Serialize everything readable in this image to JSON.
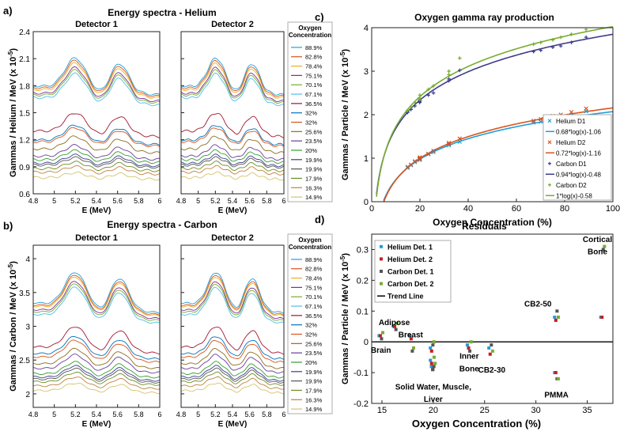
{
  "figure": {
    "panel_a_letter": "a)",
    "panel_b_letter": "b)",
    "panel_c_letter": "c)",
    "panel_d_letter": "d)"
  },
  "chart_data": [
    {
      "id": "a",
      "type": "line",
      "title": "Energy spectra - Helium",
      "subplot_titles": [
        "Detector 1",
        "Detector 2"
      ],
      "xlabel": "E (MeV)",
      "ylabel": "Gammas / Helium / MeV (x 10",
      "ylabel_exp": "-5",
      "ylabel_close": ")",
      "xlim": [
        4.8,
        6.0
      ],
      "ylim": [
        0.6,
        2.4
      ],
      "xticks": [
        4.8,
        5,
        5.2,
        5.4,
        5.6,
        5.8,
        6
      ],
      "xtick_labels": [
        "4.8",
        "5",
        "5.2",
        "5.4",
        "5.6",
        "5.8",
        "6"
      ],
      "yticks": [
        0.6,
        0.9,
        1.2,
        1.5,
        1.8,
        2.1,
        2.4
      ],
      "ytick_labels": [
        "0.6",
        "0.9",
        "1.2",
        "1.5",
        "1.8",
        "2.1",
        "2.4"
      ],
      "legend_title": [
        "Oxygen",
        "Concentration"
      ],
      "legend_placement": "right",
      "series": [
        {
          "name": "88.9%",
          "color": "#1f9fd8",
          "baseline": 1.8,
          "peak": 0.34
        },
        {
          "name": "82.8%",
          "color": "#d9531e",
          "baseline": 1.78,
          "peak": 0.33
        },
        {
          "name": "78.4%",
          "color": "#edb120",
          "baseline": 1.76,
          "peak": 0.32
        },
        {
          "name": "75.1%",
          "color": "#7e2f8e",
          "baseline": 1.72,
          "peak": 0.31
        },
        {
          "name": "70.1%",
          "color": "#77ac30",
          "baseline": 1.7,
          "peak": 0.3
        },
        {
          "name": "67.1%",
          "color": "#4dbeee",
          "baseline": 1.67,
          "peak": 0.29
        },
        {
          "name": "36.5%",
          "color": "#a2142f",
          "baseline": 1.3,
          "peak": 0.22
        },
        {
          "name": "32%",
          "color": "#0072bd",
          "baseline": 1.2,
          "peak": 0.18
        },
        {
          "name": "32%",
          "color": "#d95319",
          "baseline": 1.18,
          "peak": 0.17
        },
        {
          "name": "25.6%",
          "color": "#8c6d1f",
          "baseline": 1.1,
          "peak": 0.15
        },
        {
          "name": "23.5%",
          "color": "#6a3d9a",
          "baseline": 1.02,
          "peak": 0.13
        },
        {
          "name": "20%",
          "color": "#33a02c",
          "baseline": 0.98,
          "peak": 0.11
        },
        {
          "name": "19.9%",
          "color": "#3c3c8c",
          "baseline": 0.94,
          "peak": 0.1
        },
        {
          "name": "19.9%",
          "color": "#555555",
          "baseline": 0.92,
          "peak": 0.09
        },
        {
          "name": "17.9%",
          "color": "#6b8e23",
          "baseline": 0.88,
          "peak": 0.08
        },
        {
          "name": "16.3%",
          "color": "#c08040",
          "baseline": 0.84,
          "peak": 0.07
        },
        {
          "name": "14.9%",
          "color": "#d4c36a",
          "baseline": 0.78,
          "peak": 0.06
        }
      ]
    },
    {
      "id": "b",
      "type": "line",
      "title": "Energy spectra - Carbon",
      "subplot_titles": [
        "Detector 1",
        "Detector 2"
      ],
      "xlabel": "E (MeV)",
      "ylabel": "Gammas / Carbon / MeV (x 10",
      "ylabel_exp": "-5",
      "ylabel_close": ")",
      "xlim": [
        4.8,
        6.0
      ],
      "ylim": [
        1.8,
        4.2
      ],
      "xticks": [
        4.8,
        5,
        5.2,
        5.4,
        5.6,
        5.8,
        6
      ],
      "xtick_labels": [
        "4.8",
        "5",
        "5.2",
        "5.4",
        "5.6",
        "5.8",
        "6"
      ],
      "yticks": [
        2,
        2.5,
        3,
        3.5,
        4
      ],
      "ytick_labels": [
        "2",
        "2.5",
        "3",
        "3.5",
        "4"
      ],
      "legend_title": [
        "Oxygen",
        "Concentration"
      ],
      "legend_placement": "right",
      "series": [
        {
          "name": "88.9%",
          "color": "#1f9fd8",
          "baseline": 3.35,
          "peak": 0.5
        },
        {
          "name": "82.8%",
          "color": "#d9531e",
          "baseline": 3.32,
          "peak": 0.49
        },
        {
          "name": "78.4%",
          "color": "#edb120",
          "baseline": 3.3,
          "peak": 0.48
        },
        {
          "name": "75.1%",
          "color": "#7e2f8e",
          "baseline": 3.25,
          "peak": 0.46
        },
        {
          "name": "70.1%",
          "color": "#77ac30",
          "baseline": 3.22,
          "peak": 0.45
        },
        {
          "name": "67.1%",
          "color": "#4dbeee",
          "baseline": 3.18,
          "peak": 0.44
        },
        {
          "name": "36.5%",
          "color": "#a2142f",
          "baseline": 2.7,
          "peak": 0.33
        },
        {
          "name": "32%",
          "color": "#0072bd",
          "baseline": 2.6,
          "peak": 0.28
        },
        {
          "name": "32%",
          "color": "#d95319",
          "baseline": 2.55,
          "peak": 0.27
        },
        {
          "name": "25.6%",
          "color": "#8c6d1f",
          "baseline": 2.45,
          "peak": 0.24
        },
        {
          "name": "23.5%",
          "color": "#6a3d9a",
          "baseline": 2.38,
          "peak": 0.22
        },
        {
          "name": "20%",
          "color": "#33a02c",
          "baseline": 2.3,
          "peak": 0.19
        },
        {
          "name": "19.9%",
          "color": "#3c3c8c",
          "baseline": 2.25,
          "peak": 0.18
        },
        {
          "name": "19.9%",
          "color": "#555555",
          "baseline": 2.22,
          "peak": 0.17
        },
        {
          "name": "17.9%",
          "color": "#6b8e23",
          "baseline": 2.18,
          "peak": 0.15
        },
        {
          "name": "16.3%",
          "color": "#c08040",
          "baseline": 2.12,
          "peak": 0.14
        },
        {
          "name": "14.9%",
          "color": "#d4c36a",
          "baseline": 2.05,
          "peak": 0.12
        }
      ]
    },
    {
      "id": "c",
      "type": "scatter",
      "title": "Oxygen gamma ray production",
      "xlabel": "Oxygen Concentration (%)",
      "ylabel": "Gammas / Particle / MeV (x 10",
      "ylabel_exp": "-5",
      "ylabel_close": ")",
      "xlim": [
        0,
        100
      ],
      "ylim": [
        0,
        4
      ],
      "xticks": [
        0,
        20,
        40,
        60,
        80,
        100
      ],
      "xtick_labels": [
        "0",
        "20",
        "40",
        "60",
        "80",
        "100"
      ],
      "yticks": [
        0,
        1,
        2,
        3,
        4
      ],
      "ytick_labels": [
        "0",
        "1",
        "2",
        "3",
        "4"
      ],
      "legend_placement": "bottom-right",
      "x": [
        14.9,
        16.3,
        17.9,
        19.9,
        19.9,
        20.0,
        23.5,
        25.6,
        32.0,
        32.0,
        36.5,
        67.1,
        70.1,
        75.1,
        78.4,
        82.8,
        88.9
      ],
      "series": [
        {
          "name": "Helium D1",
          "color": "#1f9fd8",
          "marker": "x",
          "fit": {
            "a": 0.68,
            "b": -1.06
          },
          "values": [
            0.78,
            0.84,
            0.91,
            0.97,
            0.96,
            0.99,
            1.09,
            1.14,
            1.3,
            1.31,
            1.38,
            1.82,
            1.84,
            1.92,
            1.92,
            1.98,
            2.08
          ]
        },
        {
          "name": "Helium D2",
          "color": "#d9531e",
          "marker": "x",
          "fit": {
            "a": 0.72,
            "b": -1.16
          },
          "values": [
            0.8,
            0.85,
            0.93,
            1.0,
            0.98,
            1.02,
            1.1,
            1.17,
            1.33,
            1.35,
            1.45,
            1.86,
            1.9,
            1.97,
            2.0,
            2.06,
            2.14
          ]
        },
        {
          "name": "Carbon D1",
          "color": "#3c3c8c",
          "marker": "+",
          "fit": {
            "a": 0.94,
            "b": -0.48
          },
          "values": [
            2.05,
            2.12,
            2.2,
            2.3,
            2.28,
            2.33,
            2.45,
            2.5,
            2.78,
            2.82,
            3.02,
            3.45,
            3.48,
            3.55,
            3.58,
            3.66,
            3.78
          ]
        },
        {
          "name": "Carbon D2",
          "color": "#77ac30",
          "marker": "+",
          "fit": {
            "a": 1.0,
            "b": -0.58
          },
          "values": [
            2.1,
            2.18,
            2.28,
            2.35,
            2.38,
            2.45,
            2.58,
            2.66,
            2.92,
            3.0,
            3.3,
            3.62,
            3.66,
            3.72,
            3.78,
            3.85,
            3.96
          ]
        }
      ],
      "fit_labels": [
        "0.68*log(x)-1.06",
        "0.72*log(x)-1.16",
        "0.94*log(x)-0.48",
        "1*log(x)-0.58"
      ],
      "fit_colors": [
        "#1f9fd8",
        "#d9531e",
        "#3c3c8c",
        "#77ac30"
      ]
    },
    {
      "id": "d",
      "type": "scatter",
      "title": "Residuals",
      "xlabel": "Oxygen Concentration (%)",
      "ylabel": "Gammas / Particle / MeV (x 10",
      "ylabel_exp": "-5",
      "ylabel_close": ")",
      "xlim": [
        14,
        37.5
      ],
      "ylim": [
        -0.2,
        0.35
      ],
      "xticks": [
        15,
        20,
        25,
        30,
        35
      ],
      "xtick_labels": [
        "15",
        "20",
        "25",
        "30",
        "35"
      ],
      "yticks": [
        -0.2,
        -0.1,
        0,
        0.1,
        0.2,
        0.3
      ],
      "ytick_labels": [
        "-0.2",
        "-0.1",
        "0",
        "0.1",
        "0.2",
        "0.3"
      ],
      "legend_placement": "top-left",
      "trend_line": {
        "name": "Trend Line",
        "y": 0
      },
      "x": [
        14.9,
        16.3,
        17.9,
        19.9,
        19.9,
        20.0,
        23.5,
        25.6,
        32.0,
        32.0,
        36.5
      ],
      "series": [
        {
          "name": "Helium Det. 1",
          "color": "#1f9fd8",
          "values": [
            0.02,
            0.05,
            0.02,
            -0.02,
            -0.06,
            -0.08,
            -0.01,
            -0.02,
            0.08,
            -0.1,
            0.08
          ]
        },
        {
          "name": "Helium Det. 2",
          "color": "#cc1c1c",
          "values": [
            0.02,
            0.05,
            0.01,
            -0.03,
            -0.07,
            -0.09,
            -0.02,
            -0.04,
            0.07,
            -0.1,
            0.08
          ]
        },
        {
          "name": "Carbon Det. 1",
          "color": "#555555",
          "values": [
            0.01,
            0.04,
            -0.03,
            -0.01,
            -0.09,
            -0.08,
            -0.03,
            -0.01,
            0.1,
            -0.12,
            0.3
          ]
        },
        {
          "name": "Carbon Det. 2",
          "color": "#77ac30",
          "values": [
            0.03,
            0.06,
            -0.02,
            0.0,
            -0.05,
            -0.07,
            0.0,
            -0.03,
            0.08,
            -0.12,
            0.31
          ]
        }
      ],
      "annotations": [
        {
          "text": "Brain",
          "x": 14.9,
          "y": -0.025
        },
        {
          "text": "Adipose",
          "x": 16.2,
          "y": 0.065
        },
        {
          "text": "Breast",
          "x": 17.8,
          "y": 0.025
        },
        {
          "text": "Inner",
          "x": 23.5,
          "y": -0.045
        },
        {
          "text": "Bone",
          "x": 23.5,
          "y": -0.085
        },
        {
          "text": "CB2-30",
          "x": 25.7,
          "y": -0.09
        },
        {
          "text": "Solid Water, Muscle,",
          "x": 20.0,
          "y": -0.145
        },
        {
          "text": "Liver",
          "x": 20.0,
          "y": -0.185
        },
        {
          "text": "CB2-50",
          "x": 30.2,
          "y": 0.125
        },
        {
          "text": "PMMA",
          "x": 32.0,
          "y": -0.17
        },
        {
          "text": "Cortical",
          "x": 36.0,
          "y": 0.335
        },
        {
          "text": "Bone",
          "x": 36.0,
          "y": 0.295
        }
      ]
    }
  ]
}
